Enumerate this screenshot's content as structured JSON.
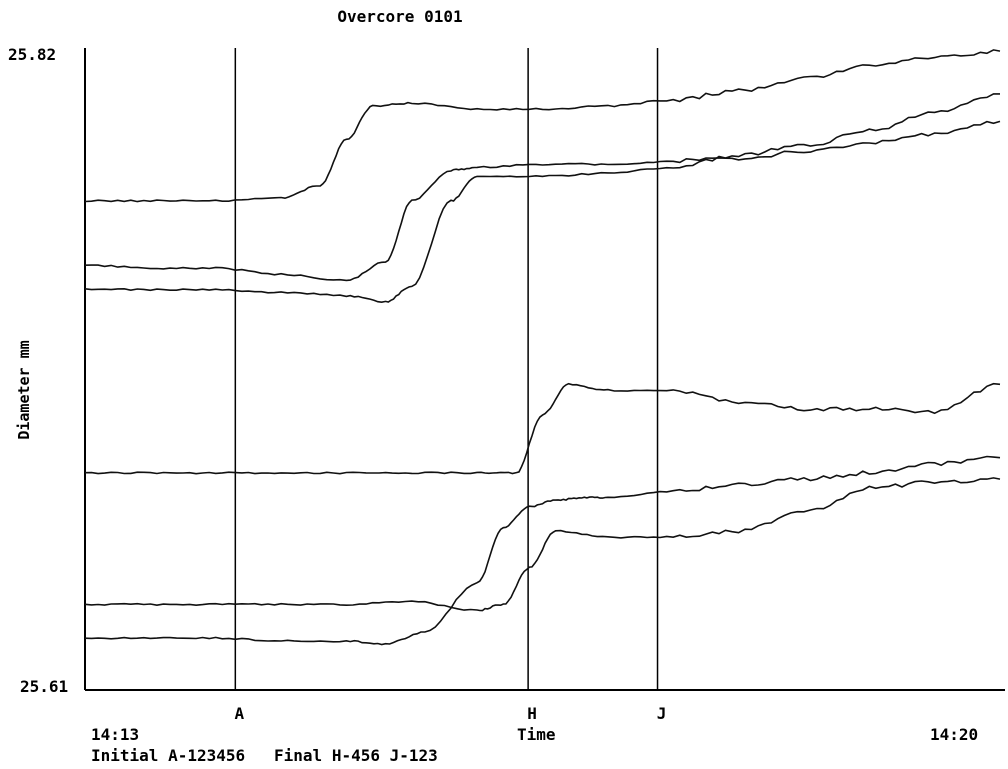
{
  "chart_data": {
    "type": "line",
    "title": "Overcore 0101",
    "xlabel": "Time",
    "ylabel": "Diameter mm",
    "ylim": [
      25.61,
      25.82
    ],
    "y_tick_labels": [
      "25.82",
      "25.61"
    ],
    "x_tick_labels": [
      "14:13",
      "14:20"
    ],
    "xlim_minutes": [
      0,
      7
    ],
    "markers": [
      {
        "label": "A",
        "x": 1.15
      },
      {
        "label": "H",
        "x": 3.39
      },
      {
        "label": "J",
        "x": 4.38
      }
    ],
    "footer": "Initial A-123456   Final H-456 J-123",
    "grid": false,
    "series": [
      {
        "x": [
          0,
          0.5,
          1.0,
          1.5,
          1.8,
          2.0,
          2.2,
          2.5,
          3.0,
          3.5,
          4.0,
          4.5,
          5.0,
          5.5,
          6.0,
          6.5,
          7.0
        ],
        "values": [
          25.77,
          25.77,
          25.77,
          25.771,
          25.775,
          25.79,
          25.801,
          25.802,
          25.8,
          25.8,
          25.801,
          25.803,
          25.806,
          25.81,
          25.814,
          25.817,
          25.819
        ]
      },
      {
        "x": [
          0,
          0.5,
          1.0,
          1.5,
          2.0,
          2.3,
          2.5,
          2.8,
          3.0,
          3.5,
          4.0,
          4.5,
          5.0,
          5.5,
          6.0,
          6.5,
          7.0
        ],
        "values": [
          25.741,
          25.741,
          25.741,
          25.74,
          25.739,
          25.737,
          25.742,
          25.77,
          25.778,
          25.778,
          25.779,
          25.781,
          25.785,
          25.788,
          25.793,
          25.799,
          25.805
        ]
      },
      {
        "x": [
          0,
          0.5,
          1.0,
          1.5,
          2.0,
          2.3,
          2.5,
          2.8,
          3.0,
          3.5,
          4.0,
          4.5,
          5.0,
          5.5,
          6.0,
          6.5,
          7.0
        ],
        "values": [
          25.749,
          25.748,
          25.748,
          25.746,
          25.744,
          25.75,
          25.77,
          25.78,
          25.781,
          25.782,
          25.782,
          25.783,
          25.784,
          25.786,
          25.789,
          25.792,
          25.796
        ]
      },
      {
        "x": [
          0,
          0.5,
          1.0,
          1.5,
          2.0,
          2.5,
          3.0,
          3.3,
          3.5,
          3.7,
          4.0,
          4.5,
          5.0,
          5.5,
          6.0,
          6.5,
          7.0
        ],
        "values": [
          25.681,
          25.681,
          25.681,
          25.681,
          25.681,
          25.681,
          25.681,
          25.681,
          25.7,
          25.71,
          25.708,
          25.708,
          25.704,
          25.702,
          25.702,
          25.701,
          25.71
        ]
      },
      {
        "x": [
          0,
          0.5,
          1.0,
          1.5,
          2.0,
          2.5,
          3.0,
          3.2,
          3.4,
          3.6,
          4.0,
          4.5,
          5.0,
          5.5,
          6.0,
          6.5,
          7.0
        ],
        "values": [
          25.638,
          25.638,
          25.638,
          25.638,
          25.638,
          25.639,
          25.636,
          25.638,
          25.65,
          25.662,
          25.66,
          25.66,
          25.662,
          25.668,
          25.676,
          25.678,
          25.679
        ]
      },
      {
        "x": [
          0,
          0.5,
          1.0,
          1.5,
          2.0,
          2.3,
          2.6,
          3.0,
          3.2,
          3.4,
          3.6,
          3.8,
          4.0,
          4.5,
          5.0,
          5.5,
          6.0,
          6.5,
          7.0
        ],
        "values": [
          25.627,
          25.627,
          25.627,
          25.626,
          25.626,
          25.625,
          25.629,
          25.645,
          25.663,
          25.67,
          25.672,
          25.673,
          25.673,
          25.675,
          25.677,
          25.679,
          25.681,
          25.684,
          25.686
        ]
      }
    ]
  }
}
